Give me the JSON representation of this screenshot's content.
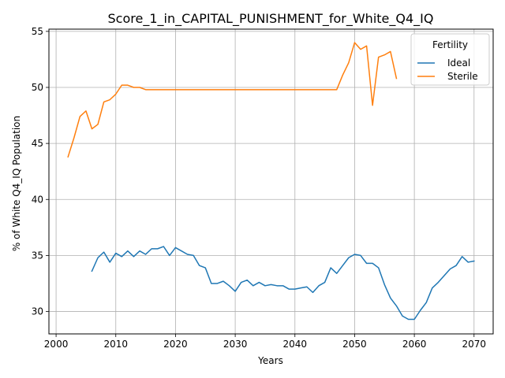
{
  "chart_data": {
    "type": "line",
    "title": "Score_1_in_CAPITAL_PUNISHMENT_for_White_Q4_IQ",
    "xlabel": "Years",
    "ylabel": "% of White Q4_IQ Population",
    "xlim": [
      1998.8,
      2073.2
    ],
    "ylim": [
      28.0,
      55.2
    ],
    "xticks": [
      2000,
      2010,
      2020,
      2030,
      2040,
      2050,
      2060,
      2070
    ],
    "yticks": [
      30,
      35,
      40,
      45,
      50,
      55
    ],
    "grid": true,
    "legend": {
      "title": "Fertility",
      "placement": "top-right"
    },
    "series": [
      {
        "name": "Ideal",
        "color": "#1f77b4",
        "x": [
          2006,
          2007,
          2008,
          2009,
          2010,
          2011,
          2012,
          2013,
          2014,
          2015,
          2016,
          2017,
          2018,
          2019,
          2020,
          2021,
          2022,
          2023,
          2024,
          2025,
          2026,
          2027,
          2028,
          2029,
          2030,
          2031,
          2032,
          2033,
          2034,
          2035,
          2036,
          2037,
          2038,
          2039,
          2040,
          2041,
          2042,
          2043,
          2044,
          2045,
          2046,
          2047,
          2048,
          2049,
          2050,
          2051,
          2052,
          2053,
          2054,
          2055,
          2056,
          2057,
          2058,
          2059,
          2060,
          2061,
          2062,
          2063,
          2064,
          2065,
          2066,
          2067,
          2068,
          2069,
          2070
        ],
        "values": [
          33.6,
          34.8,
          35.3,
          34.4,
          35.2,
          34.9,
          35.4,
          34.9,
          35.4,
          35.1,
          35.6,
          35.6,
          35.8,
          35.0,
          35.7,
          35.4,
          35.1,
          35.0,
          34.1,
          33.9,
          32.5,
          32.5,
          32.7,
          32.3,
          31.8,
          32.6,
          32.8,
          32.3,
          32.6,
          32.3,
          32.4,
          32.3,
          32.3,
          32.0,
          32.0,
          32.1,
          32.2,
          31.7,
          32.3,
          32.6,
          33.9,
          33.4,
          34.1,
          34.8,
          35.1,
          35.0,
          34.3,
          34.3,
          33.9,
          32.4,
          31.2,
          30.5,
          29.6,
          29.3,
          29.3,
          30.1,
          30.8,
          32.1,
          32.6,
          33.2,
          33.8,
          34.1,
          34.9,
          34.4,
          34.5
        ]
      },
      {
        "name": "Sterile",
        "color": "#ff7f0e",
        "x": [
          2002,
          2003,
          2004,
          2005,
          2006,
          2007,
          2008,
          2009,
          2010,
          2011,
          2012,
          2013,
          2014,
          2015,
          2016,
          2017,
          2018,
          2019,
          2020,
          2021,
          2022,
          2023,
          2024,
          2025,
          2026,
          2027,
          2028,
          2029,
          2030,
          2031,
          2032,
          2033,
          2034,
          2035,
          2036,
          2037,
          2038,
          2039,
          2040,
          2041,
          2042,
          2043,
          2044,
          2045,
          2046,
          2047,
          2048,
          2049,
          2050,
          2051,
          2052,
          2053,
          2054,
          2055,
          2056,
          2057
        ],
        "values": [
          43.8,
          45.5,
          47.4,
          47.9,
          46.3,
          46.7,
          48.7,
          48.9,
          49.4,
          50.2,
          50.2,
          50.0,
          50.0,
          49.8,
          49.8,
          49.8,
          49.8,
          49.8,
          49.8,
          49.8,
          49.8,
          49.8,
          49.8,
          49.8,
          49.8,
          49.8,
          49.8,
          49.8,
          49.8,
          49.8,
          49.8,
          49.8,
          49.8,
          49.8,
          49.8,
          49.8,
          49.8,
          49.8,
          49.8,
          49.8,
          49.8,
          49.8,
          49.8,
          49.8,
          49.8,
          49.8,
          51.1,
          52.2,
          54.0,
          53.4,
          53.7,
          48.4,
          52.7,
          52.9,
          53.2,
          50.8
        ]
      }
    ]
  }
}
